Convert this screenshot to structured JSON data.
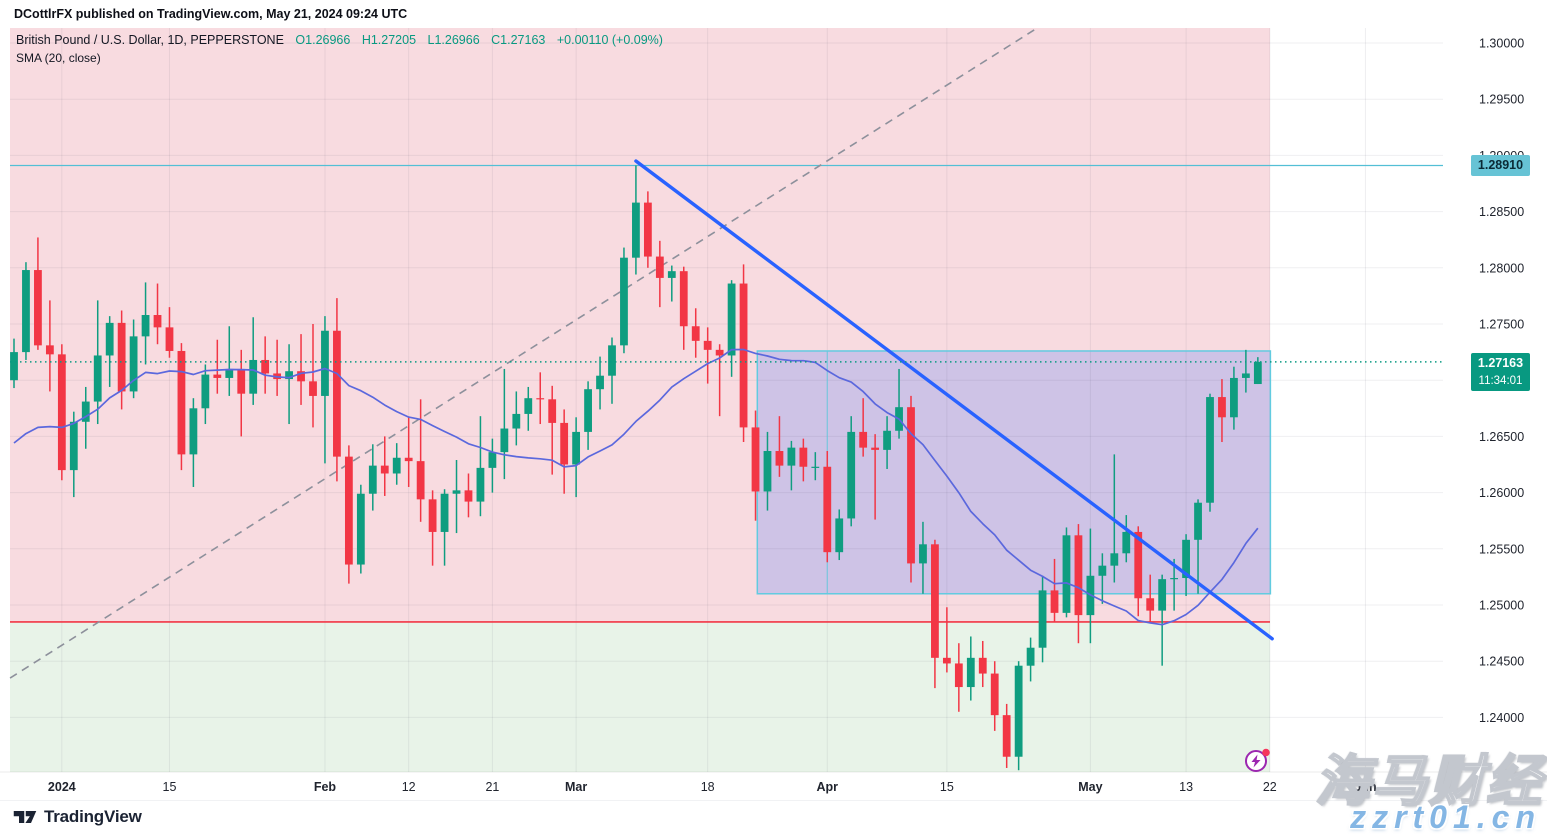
{
  "header": {
    "attribution": "DCottlrFX published on TradingView.com, May 21, 2024 09:24 UTC"
  },
  "legend": {
    "symbol": "British Pound / U.S. Dollar, 1D, PEPPERSTONE",
    "open": "O1.26966",
    "high": "H1.27205",
    "low": "L1.26966",
    "close": "C1.27163",
    "change": "+0.00110 (+0.09%)",
    "indicator": "SMA (20, close)"
  },
  "colors": {
    "up": "#0f9d80",
    "down": "#f23645",
    "ohlc_text": "#089981",
    "sma_line": "#5b68dd",
    "downtrend_line": "#2962ff",
    "uptrend_dashed": "#8d909b",
    "resistance_line": "#53bfd5",
    "current_dotted": "#0a9a83",
    "zone_boundary_line": "#f23645",
    "region_pink": "#f8dbe0",
    "region_green": "#e8f3e8",
    "box_fill": "rgba(41,98,255,0.20)",
    "box_border": "#62cbe0",
    "grid": "rgba(70,75,90,0.085)",
    "axis_text": "#20242e",
    "tag_resistance_bg": "#66c3d5",
    "tag_resistance_fg": "#0b2a35",
    "tag_current_bg": "#089981"
  },
  "price_axis": {
    "labels": [
      "1.30000",
      "1.29500",
      "1.29000",
      "1.28500",
      "1.28000",
      "1.27500",
      "1.27000",
      "1.26500",
      "1.26000",
      "1.25500",
      "1.25000",
      "1.24500",
      "1.24000"
    ],
    "values": [
      1.3,
      1.295,
      1.29,
      1.285,
      1.28,
      1.275,
      1.27,
      1.265,
      1.26,
      1.255,
      1.25,
      1.245,
      1.24
    ],
    "tag_resistance": {
      "text": "1.28910",
      "price": 1.2891
    },
    "tag_current": {
      "price_text": "1.27163",
      "countdown": "11:34:01",
      "price": 1.27163
    }
  },
  "time_axis": {
    "ticks": [
      {
        "label": "2024",
        "bar": 4,
        "bold": true
      },
      {
        "label": "15",
        "bar": 13,
        "bold": false
      },
      {
        "label": "Feb",
        "bar": 26,
        "bold": true
      },
      {
        "label": "12",
        "bar": 33,
        "bold": false
      },
      {
        "label": "21",
        "bar": 40,
        "bold": false
      },
      {
        "label": "Mar",
        "bar": 47,
        "bold": true
      },
      {
        "label": "18",
        "bar": 58,
        "bold": false
      },
      {
        "label": "Apr",
        "bar": 68,
        "bold": true
      },
      {
        "label": "15",
        "bar": 78,
        "bold": false
      },
      {
        "label": "May",
        "bar": 90,
        "bold": true
      },
      {
        "label": "13",
        "bar": 98,
        "bold": false
      },
      {
        "label": "22",
        "bar": 105,
        "bold": false
      },
      {
        "label": "Jun",
        "bar": 113,
        "bold": true
      }
    ]
  },
  "watermark": {
    "line1": "海马财经",
    "line2": "zzrt01.cn"
  },
  "branding": {
    "logo_text": "TradingView"
  },
  "flash_button": {
    "icon": "lightning-bolt",
    "notification_dot": true
  },
  "chart_data": {
    "type": "candlestick",
    "title": "British Pound / U.S. Dollar, 1D, PEPPERSTONE",
    "ylabel": "price",
    "ylim": [
      1.2353,
      1.3015
    ],
    "grid": true,
    "candles_format": [
      "date",
      "open",
      "high",
      "low",
      "close"
    ],
    "candles": [
      [
        "12-26",
        1.27,
        1.2737,
        1.2693,
        1.2725
      ],
      [
        "12-27",
        1.2725,
        1.2805,
        1.2718,
        1.2798
      ],
      [
        "12-28",
        1.2798,
        1.2827,
        1.2727,
        1.2731
      ],
      [
        "12-29",
        1.2731,
        1.2771,
        1.269,
        1.2723
      ],
      [
        "01-02",
        1.2723,
        1.2732,
        1.2611,
        1.262
      ],
      [
        "01-03",
        1.262,
        1.2672,
        1.2596,
        1.2663
      ],
      [
        "01-04",
        1.2663,
        1.2694,
        1.2639,
        1.2681
      ],
      [
        "01-05",
        1.2681,
        1.2771,
        1.2661,
        1.2722
      ],
      [
        "01-08",
        1.2722,
        1.2757,
        1.2694,
        1.2751
      ],
      [
        "01-09",
        1.2751,
        1.2762,
        1.2674,
        1.269
      ],
      [
        "01-10",
        1.269,
        1.2754,
        1.2684,
        1.2739
      ],
      [
        "01-11",
        1.2739,
        1.2787,
        1.2714,
        1.2758
      ],
      [
        "01-12",
        1.2758,
        1.2786,
        1.2732,
        1.2747
      ],
      [
        "01-15",
        1.2747,
        1.2765,
        1.272,
        1.2726
      ],
      [
        "01-16",
        1.2726,
        1.2733,
        1.262,
        1.2634
      ],
      [
        "01-17",
        1.2634,
        1.2684,
        1.2605,
        1.2675
      ],
      [
        "01-18",
        1.2675,
        1.2714,
        1.2661,
        1.2705
      ],
      [
        "01-19",
        1.2705,
        1.2736,
        1.2688,
        1.2702
      ],
      [
        "01-22",
        1.2702,
        1.2748,
        1.2686,
        1.271
      ],
      [
        "01-23",
        1.271,
        1.2727,
        1.265,
        1.2688
      ],
      [
        "01-24",
        1.2688,
        1.2756,
        1.2678,
        1.2718
      ],
      [
        "01-25",
        1.2718,
        1.2739,
        1.2688,
        1.2706
      ],
      [
        "01-26",
        1.2706,
        1.2736,
        1.2686,
        1.2701
      ],
      [
        "01-29",
        1.2701,
        1.2732,
        1.2661,
        1.2708
      ],
      [
        "01-30",
        1.2708,
        1.2741,
        1.2678,
        1.2699
      ],
      [
        "01-31",
        1.2699,
        1.275,
        1.2658,
        1.2686
      ],
      [
        "02-01",
        1.2686,
        1.2757,
        1.2626,
        1.2744
      ],
      [
        "02-02",
        1.2744,
        1.2773,
        1.261,
        1.2632
      ],
      [
        "02-05",
        1.2632,
        1.2642,
        1.2519,
        1.2536
      ],
      [
        "02-06",
        1.2536,
        1.2607,
        1.2528,
        1.2599
      ],
      [
        "02-07",
        1.2599,
        1.2643,
        1.2584,
        1.2624
      ],
      [
        "02-08",
        1.2624,
        1.265,
        1.2597,
        1.2617
      ],
      [
        "02-09",
        1.2617,
        1.2644,
        1.2607,
        1.2631
      ],
      [
        "02-12",
        1.2631,
        1.2667,
        1.2605,
        1.2628
      ],
      [
        "02-13",
        1.2628,
        1.2683,
        1.2574,
        1.2594
      ],
      [
        "02-14",
        1.2594,
        1.2602,
        1.2535,
        1.2565
      ],
      [
        "02-15",
        1.2565,
        1.2603,
        1.2535,
        1.2599
      ],
      [
        "02-16",
        1.2599,
        1.2629,
        1.2564,
        1.2602
      ],
      [
        "02-19",
        1.2602,
        1.2617,
        1.2578,
        1.2592
      ],
      [
        "02-20",
        1.2592,
        1.2668,
        1.2579,
        1.2622
      ],
      [
        "02-21",
        1.2622,
        1.2648,
        1.26,
        1.2636
      ],
      [
        "02-22",
        1.2636,
        1.271,
        1.2612,
        1.2657
      ],
      [
        "02-23",
        1.2657,
        1.269,
        1.2642,
        1.267
      ],
      [
        "02-26",
        1.267,
        1.2694,
        1.2655,
        1.2684
      ],
      [
        "02-27",
        1.2684,
        1.2707,
        1.2661,
        1.2683
      ],
      [
        "02-28",
        1.2683,
        1.2695,
        1.2616,
        1.2662
      ],
      [
        "02-29",
        1.2662,
        1.2674,
        1.2599,
        1.2625
      ],
      [
        "03-01",
        1.2625,
        1.2667,
        1.2596,
        1.2654
      ],
      [
        "03-04",
        1.2654,
        1.2699,
        1.2638,
        1.2692
      ],
      [
        "03-05",
        1.2692,
        1.2721,
        1.2674,
        1.2704
      ],
      [
        "03-06",
        1.2704,
        1.2738,
        1.2679,
        1.2731
      ],
      [
        "03-07",
        1.2731,
        1.2818,
        1.2724,
        1.2809
      ],
      [
        "03-08",
        1.2809,
        1.2891,
        1.2794,
        1.2858
      ],
      [
        "03-11",
        1.2858,
        1.2868,
        1.28,
        1.281
      ],
      [
        "03-12",
        1.281,
        1.2824,
        1.2765,
        1.2791
      ],
      [
        "03-13",
        1.2791,
        1.2802,
        1.277,
        1.2797
      ],
      [
        "03-14",
        1.2797,
        1.2801,
        1.2727,
        1.2748
      ],
      [
        "03-15",
        1.2748,
        1.2764,
        1.272,
        1.2735
      ],
      [
        "03-18",
        1.2735,
        1.2747,
        1.2697,
        1.2727
      ],
      [
        "03-19",
        1.2727,
        1.2732,
        1.2668,
        1.2722
      ],
      [
        "03-20",
        1.2722,
        1.2789,
        1.2703,
        1.2786
      ],
      [
        "03-21",
        1.2786,
        1.2803,
        1.2645,
        1.2658
      ],
      [
        "03-22",
        1.2658,
        1.2673,
        1.2575,
        1.2601
      ],
      [
        "03-25",
        1.2601,
        1.2654,
        1.2584,
        1.2637
      ],
      [
        "03-26",
        1.2637,
        1.2668,
        1.2614,
        1.2624
      ],
      [
        "03-27",
        1.2624,
        1.2646,
        1.2602,
        1.264
      ],
      [
        "03-28",
        1.264,
        1.2648,
        1.261,
        1.2623
      ],
      [
        "03-29",
        1.2623,
        1.2636,
        1.2611,
        1.2623
      ],
      [
        "04-01",
        1.2623,
        1.2637,
        1.2538,
        1.2547
      ],
      [
        "04-02",
        1.2547,
        1.2585,
        1.254,
        1.2577
      ],
      [
        "04-03",
        1.2577,
        1.2668,
        1.257,
        1.2654
      ],
      [
        "04-04",
        1.2654,
        1.2684,
        1.2632,
        1.264
      ],
      [
        "04-05",
        1.264,
        1.2652,
        1.2576,
        1.2638
      ],
      [
        "04-08",
        1.2638,
        1.2668,
        1.2621,
        1.2655
      ],
      [
        "04-09",
        1.2655,
        1.271,
        1.2648,
        1.2676
      ],
      [
        "04-10",
        1.2676,
        1.2686,
        1.252,
        1.2537
      ],
      [
        "04-11",
        1.2537,
        1.2574,
        1.251,
        1.2554
      ],
      [
        "04-12",
        1.2554,
        1.2558,
        1.2426,
        1.2453
      ],
      [
        "04-15",
        1.2453,
        1.2498,
        1.244,
        1.2448
      ],
      [
        "04-16",
        1.2448,
        1.2466,
        1.2405,
        1.2427
      ],
      [
        "04-17",
        1.2427,
        1.2472,
        1.2415,
        1.2453
      ],
      [
        "04-18",
        1.2453,
        1.2468,
        1.2427,
        1.2439
      ],
      [
        "04-19",
        1.2439,
        1.245,
        1.2388,
        1.2402
      ],
      [
        "04-22",
        1.2402,
        1.2412,
        1.2355,
        1.2365
      ],
      [
        "04-23",
        1.2365,
        1.245,
        1.2353,
        1.2446
      ],
      [
        "04-24",
        1.2446,
        1.2471,
        1.2432,
        1.2462
      ],
      [
        "04-25",
        1.2462,
        1.2526,
        1.2449,
        1.2513
      ],
      [
        "04-26",
        1.2513,
        1.2541,
        1.2485,
        1.2493
      ],
      [
        "04-29",
        1.2493,
        1.2569,
        1.2489,
        1.2562
      ],
      [
        "04-30",
        1.2562,
        1.2572,
        1.2466,
        1.2491
      ],
      [
        "05-01",
        1.2491,
        1.2568,
        1.2466,
        1.2526
      ],
      [
        "05-02",
        1.2526,
        1.2546,
        1.2501,
        1.2535
      ],
      [
        "05-03",
        1.2535,
        1.2634,
        1.252,
        1.2546
      ],
      [
        "05-06",
        1.2546,
        1.258,
        1.2538,
        1.2565
      ],
      [
        "05-07",
        1.2565,
        1.257,
        1.249,
        1.2506
      ],
      [
        "05-08",
        1.2506,
        1.2527,
        1.2484,
        1.2495
      ],
      [
        "05-09",
        1.2495,
        1.2527,
        1.2446,
        1.2523
      ],
      [
        "05-10",
        1.2523,
        1.2541,
        1.2495,
        1.2524
      ],
      [
        "05-13",
        1.2524,
        1.2563,
        1.2508,
        1.2558
      ],
      [
        "05-14",
        1.2558,
        1.2594,
        1.251,
        1.2591
      ],
      [
        "05-15",
        1.2591,
        1.2688,
        1.2583,
        1.2685
      ],
      [
        "05-16",
        1.2685,
        1.2701,
        1.2645,
        1.2667
      ],
      [
        "05-17",
        1.2667,
        1.2712,
        1.2656,
        1.2702
      ],
      [
        "05-20",
        1.2702,
        1.2727,
        1.2689,
        1.2706
      ],
      [
        "05-21",
        1.26966,
        1.27205,
        1.26966,
        1.27163
      ]
    ],
    "sma": {
      "period": 20,
      "seed_closes": [
        1.2694,
        1.263,
        1.262,
        1.271,
        1.2633,
        1.2593,
        1.256,
        1.259,
        1.255,
        1.2556,
        1.2561,
        1.2617,
        1.2767,
        1.268,
        1.2645,
        1.2727,
        1.2637,
        1.2691,
        1.27,
        1.269
      ]
    },
    "levels": {
      "resistance": 1.2891,
      "current_price": 1.27163,
      "zone_boundary": 1.24849
    },
    "regions": {
      "bear_zone": {
        "top": "chart_top",
        "bottom": 1.24849,
        "color_key": "region_pink"
      },
      "bull_zone": {
        "top": 1.24849,
        "bottom": "chart_bottom",
        "color_key": "region_green"
      }
    },
    "consolidation_box": {
      "from_bar": 62.15,
      "to_bar": 105.05,
      "top_price": 1.2726,
      "bottom_price": 1.251,
      "inner_vline_bar": 68
    },
    "trendlines": [
      {
        "name": "uptrend-dashed",
        "style": "dashed",
        "from_bar": -0.33,
        "from_price": 1.2435,
        "to_bar": 85.5,
        "to_price": 1.3013
      },
      {
        "name": "downtrend-solid",
        "style": "solid",
        "from_bar": 52.0,
        "from_price": 1.2895,
        "to_bar": 105.2,
        "to_price": 1.247
      }
    ]
  }
}
